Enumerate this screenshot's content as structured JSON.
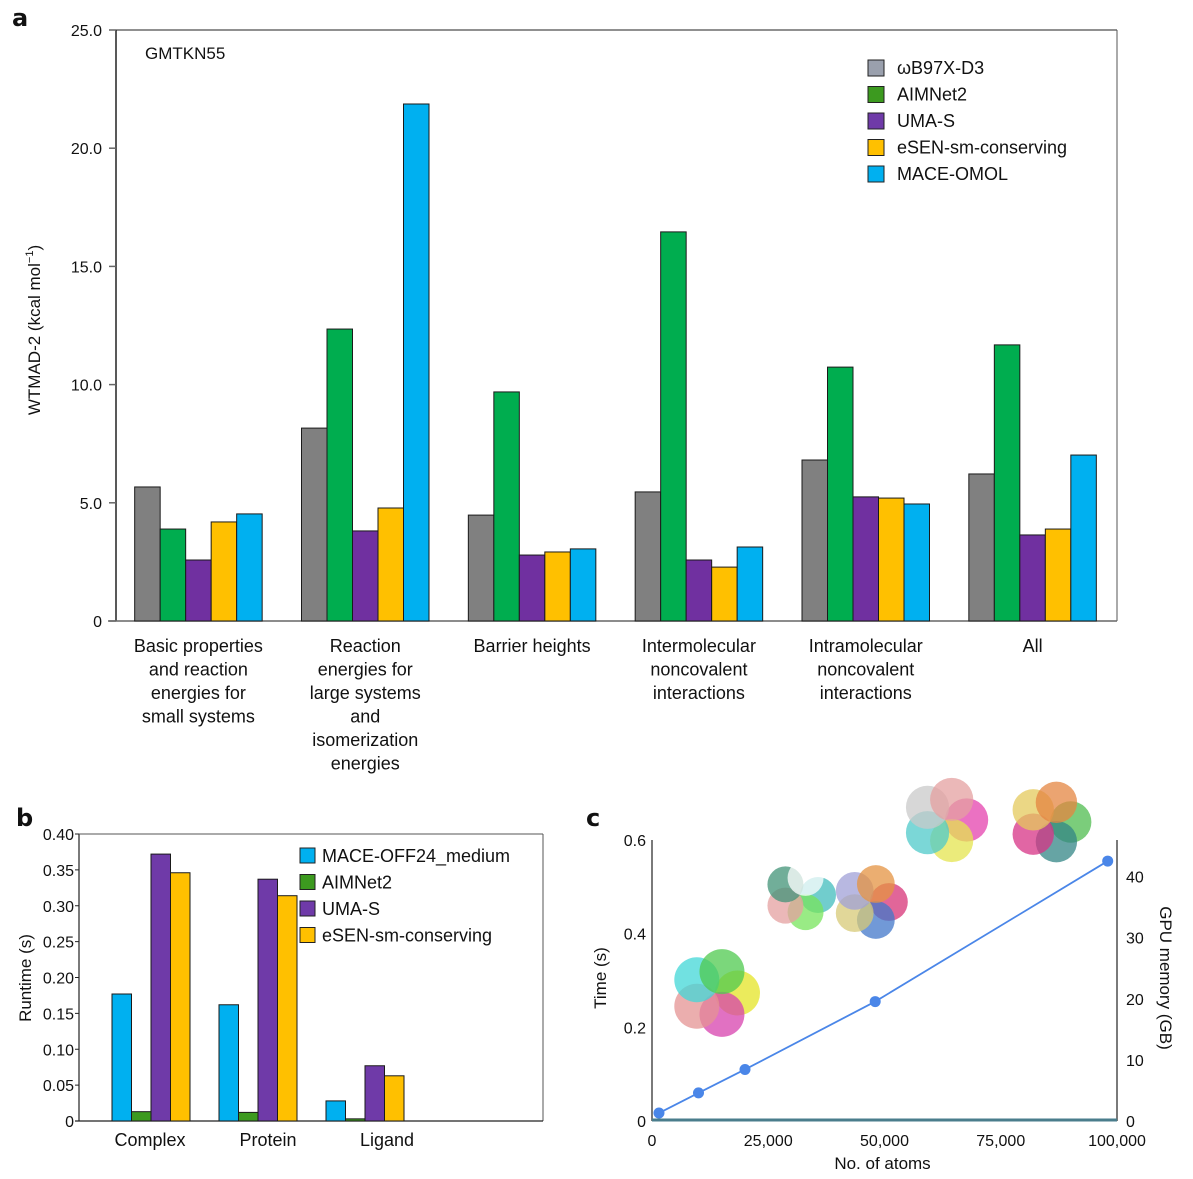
{
  "chart_data": [
    {
      "panel": "a",
      "type": "bar",
      "title": "",
      "annotation": "GMTKN55",
      "xlabel": "",
      "ylabel": "WTMAD-2 (kcal mol",
      "ylabel_sup": "−1",
      "ylabel_close": ")",
      "ylim": [
        0,
        25
      ],
      "yticks": [
        0,
        5,
        10,
        15,
        20,
        25
      ],
      "ytick_labels": [
        "0",
        "5.0",
        "10.0",
        "15.0",
        "20.0",
        "25.0"
      ],
      "grid": false,
      "legend_position": "top-right",
      "categories": [
        [
          "Basic properties",
          "and reaction",
          "energies for",
          "small systems"
        ],
        [
          "Reaction",
          "energies for",
          "large systems",
          "and",
          "isomerization",
          "energies"
        ],
        [
          "Barrier heights"
        ],
        [
          "Intermolecular",
          "noncovalent",
          "interactions"
        ],
        [
          "Intramolecular",
          "noncovalent",
          "interactions"
        ],
        [
          "All"
        ]
      ],
      "series": [
        {
          "name": "ωB97X-D3",
          "color": "#808080",
          "legend_color": "#9aa0ad",
          "values": [
            5.67,
            8.16,
            4.48,
            5.46,
            6.81,
            6.22
          ]
        },
        {
          "name": "AIMNet2",
          "color": "#00ad4f",
          "legend_color": "#3c9a1f",
          "values": [
            3.89,
            12.35,
            9.69,
            16.46,
            10.74,
            11.68
          ]
        },
        {
          "name": "UMA-S",
          "color": "#7030a0",
          "legend_color": "#6f3aa8",
          "values": [
            2.58,
            3.81,
            2.79,
            2.58,
            5.25,
            3.64
          ]
        },
        {
          "name": "eSEN-sm-conserving",
          "color": "#ffc000",
          "legend_color": "#ffc000",
          "values": [
            4.19,
            4.78,
            2.92,
            2.28,
            5.2,
            3.89
          ]
        },
        {
          "name": "MACE-OMOL",
          "color": "#00b0f0",
          "legend_color": "#00b0f0",
          "values": [
            4.53,
            21.87,
            3.05,
            3.13,
            4.95,
            7.02
          ]
        }
      ]
    },
    {
      "panel": "b",
      "type": "bar",
      "title": "",
      "xlabel": "",
      "ylabel": "Runtime (s)",
      "ylim": [
        0,
        0.4
      ],
      "yticks": [
        0,
        0.05,
        0.1,
        0.15,
        0.2,
        0.25,
        0.3,
        0.35,
        0.4
      ],
      "ytick_labels": [
        "0",
        "0.05",
        "0.10",
        "0.15",
        "0.20",
        "0.25",
        "0.30",
        "0.35",
        "0.40"
      ],
      "grid": false,
      "legend_position": "top-right",
      "categories": [
        "Complex",
        "Protein",
        "Ligand"
      ],
      "series": [
        {
          "name": "MACE-OFF24_medium",
          "color": "#00b0f0",
          "values": [
            0.177,
            0.162,
            0.028
          ]
        },
        {
          "name": "AIMNet2",
          "color": "#3c9a1f",
          "values": [
            0.013,
            0.012,
            0.003
          ]
        },
        {
          "name": "UMA-S",
          "color": "#6f3aa8",
          "values": [
            0.372,
            0.337,
            0.077
          ]
        },
        {
          "name": "eSEN-sm-conserving",
          "color": "#ffc000",
          "values": [
            0.346,
            0.314,
            0.063
          ]
        }
      ]
    },
    {
      "panel": "c",
      "type": "line",
      "title": "",
      "xlabel": "No. of atoms",
      "ylabel": "Time (s)",
      "y2label": "GPU memory (GB)",
      "xlim": [
        0,
        100000
      ],
      "ylim": [
        0,
        0.6
      ],
      "y2lim": [
        0,
        46
      ],
      "xticks": [
        0,
        25000,
        50000,
        75000,
        100000
      ],
      "xtick_labels": [
        "0",
        "25,000",
        "50,000",
        "75,000",
        "100,000"
      ],
      "yticks": [
        0,
        0.2,
        0.4,
        0.6
      ],
      "ytick_labels": [
        "0",
        "0.2",
        "0.4",
        "0.6"
      ],
      "y2ticks": [
        0,
        10,
        20,
        30,
        40
      ],
      "y2tick_labels": [
        "0",
        "10",
        "20",
        "30",
        "40"
      ],
      "grid": false,
      "series": [
        {
          "name": "Time",
          "color": "#4a86e8",
          "x": [
            1500,
            10000,
            20000,
            48000,
            98000
          ],
          "y": [
            0.017,
            0.06,
            0.11,
            0.255,
            0.555
          ]
        },
        {
          "name": "GPU memory",
          "color": "#4a7d8c",
          "x": [
            0,
            100000
          ],
          "y2": [
            0,
            0
          ]
        }
      ],
      "insets": [
        "protein-structure-pentamer",
        "protein-structure-trimer",
        "protein-structure-large-assembly-1",
        "protein-structure-large-assembly-2"
      ]
    }
  ],
  "panel_labels": [
    "a",
    "b",
    "c"
  ]
}
